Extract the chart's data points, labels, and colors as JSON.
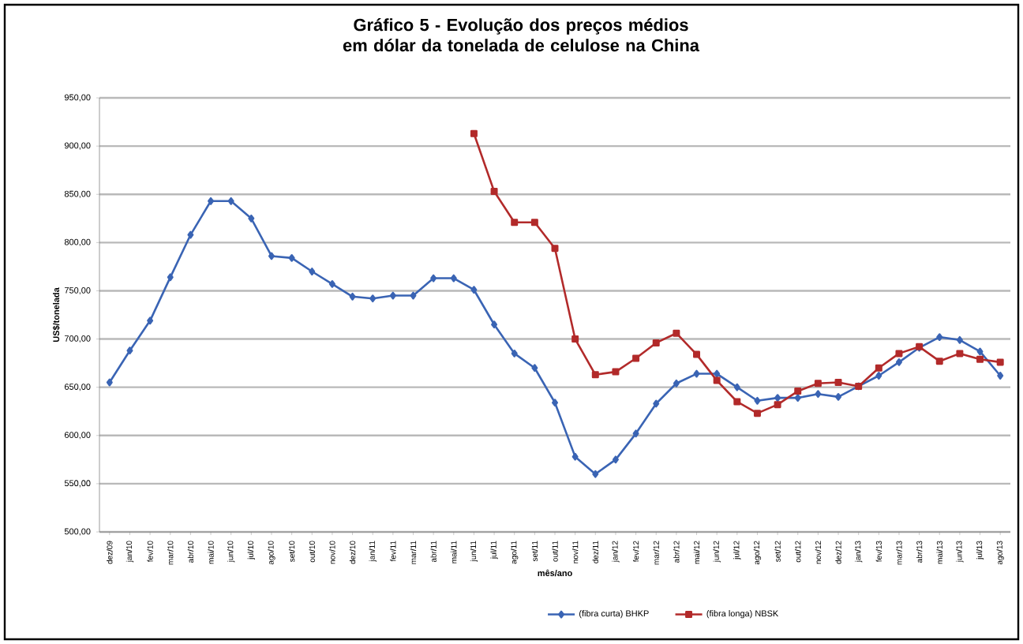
{
  "chart_data": {
    "type": "line",
    "title": "Gráfico 5 - Evolução dos preços médios em dólar da tonelada de celulose na China",
    "xlabel": "mês/ano",
    "ylabel": "US$/tonelada",
    "categories": [
      "dez/09",
      "jan/10",
      "fev/10",
      "mar/10",
      "abr/10",
      "mai/10",
      "jun/10",
      "jul/10",
      "ago/10",
      "set/10",
      "out/10",
      "nov/10",
      "dez/10",
      "jan/11",
      "fev/11",
      "mar/11",
      "abr/11",
      "mai/11",
      "jun/11",
      "jul/11",
      "ago/11",
      "set/11",
      "out/11",
      "nov/11",
      "dez/11",
      "jan/12",
      "fev/12",
      "mar/12",
      "abr/12",
      "mai/12",
      "jun/12",
      "jul/12",
      "ago/12",
      "set/12",
      "out/12",
      "nov/12",
      "dez/12",
      "jan/13",
      "fev/13",
      "mar/13",
      "abr/13",
      "mai/13",
      "jun/13",
      "jul/13",
      "ago/13"
    ],
    "series": [
      {
        "name": "(fibra curta) BHKP",
        "color": "#3a64b4",
        "marker": "diamond",
        "values": [
          655,
          688,
          719,
          764,
          808,
          843,
          843,
          825,
          786,
          784,
          770,
          757,
          744,
          742,
          745,
          745,
          763,
          763,
          751,
          715,
          685,
          670,
          634,
          578,
          560,
          575,
          602,
          633,
          654,
          664,
          664,
          650,
          636,
          639,
          639,
          643,
          640,
          651,
          662,
          676,
          691,
          702,
          699,
          687,
          662
        ]
      },
      {
        "name": "(fibra longa) NBSK",
        "color": "#b22a2a",
        "marker": "square",
        "values": [
          null,
          null,
          null,
          null,
          null,
          null,
          null,
          null,
          null,
          null,
          null,
          null,
          null,
          null,
          null,
          null,
          null,
          null,
          913,
          853,
          821,
          821,
          794,
          700,
          663,
          666,
          680,
          696,
          706,
          684,
          657,
          635,
          623,
          632,
          646,
          654,
          655,
          651,
          670,
          685,
          692,
          677,
          685,
          679,
          676
        ]
      }
    ],
    "ylim": [
      500,
      950
    ],
    "yticks": [
      {
        "value": 500,
        "label": "500,00"
      },
      {
        "value": 550,
        "label": "550,00"
      },
      {
        "value": 600,
        "label": "600,00"
      },
      {
        "value": 650,
        "label": "650,00"
      },
      {
        "value": 700,
        "label": "700,00"
      },
      {
        "value": 750,
        "label": "750,00"
      },
      {
        "value": 800,
        "label": "800,00"
      },
      {
        "value": 850,
        "label": "850,00"
      },
      {
        "value": 900,
        "label": "900,00"
      },
      {
        "value": 950,
        "label": "950,00"
      }
    ],
    "grid": "y",
    "legend": "bottom",
    "line_style": "solid"
  }
}
